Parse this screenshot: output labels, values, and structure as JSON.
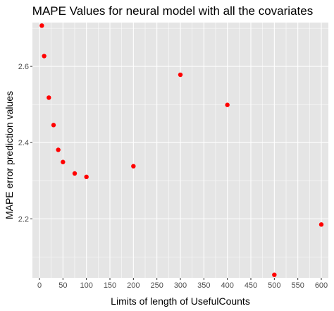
{
  "chart_data": {
    "type": "scatter",
    "title": "MAPE Values for neural model with all the covariates",
    "xlabel": "Limits of length of UsefulCounts",
    "ylabel": "MAPE error prediction values",
    "xlim": [
      -15,
      615
    ],
    "ylim": [
      2.045,
      2.715
    ],
    "xticks": [
      0,
      50,
      100,
      150,
      200,
      250,
      300,
      350,
      400,
      450,
      500,
      550,
      600
    ],
    "yticks": [
      2.2,
      2.4,
      2.6
    ],
    "ytick_labels": [
      "2.2",
      "2.4",
      "2.6"
    ],
    "grid": true,
    "background": "#e5e5e5",
    "grid_color": "#ffffff",
    "point_color": "#ff0000",
    "points": [
      {
        "x": 5,
        "y": 2.707
      },
      {
        "x": 10,
        "y": 2.627
      },
      {
        "x": 20,
        "y": 2.518
      },
      {
        "x": 30,
        "y": 2.446
      },
      {
        "x": 40,
        "y": 2.381
      },
      {
        "x": 50,
        "y": 2.349
      },
      {
        "x": 75,
        "y": 2.319
      },
      {
        "x": 100,
        "y": 2.31
      },
      {
        "x": 200,
        "y": 2.338
      },
      {
        "x": 300,
        "y": 2.578
      },
      {
        "x": 400,
        "y": 2.499
      },
      {
        "x": 500,
        "y": 2.053
      },
      {
        "x": 600,
        "y": 2.185
      }
    ]
  }
}
